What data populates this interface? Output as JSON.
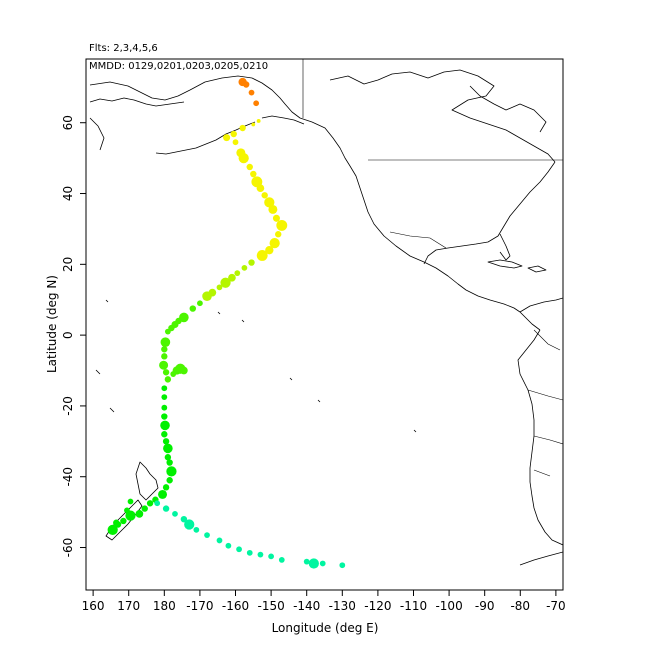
{
  "chart_data": {
    "type": "scatter",
    "title": "",
    "annotations": [
      "Flts: 2,3,4,5,6",
      "MMDD: 0129,0201,0203,0205,0210"
    ],
    "xlabel": "Longitude (deg E)",
    "ylabel": "Latitude (deg N)",
    "xlim": [
      158,
      292
    ],
    "ylim": [
      -72,
      78
    ],
    "xticks": [
      160,
      170,
      180,
      190,
      200,
      210,
      220,
      230,
      240,
      250,
      260,
      270,
      280,
      290
    ],
    "xtick_labels": [
      "160",
      "170",
      "180",
      "-170",
      "-160",
      "-150",
      "-140",
      "-130",
      "-120",
      "-110",
      "-100",
      "-90",
      "-80",
      "-70"
    ],
    "yticks": [
      -60,
      -40,
      -20,
      0,
      20,
      40,
      60
    ],
    "ytick_labels": [
      "-60",
      "-40",
      "-20",
      "0",
      "20",
      "40",
      "60"
    ],
    "grid": false,
    "background_map": "world coastlines and national borders",
    "colors": {
      "orange": "#ff8000",
      "yellow": "#f5f500",
      "yellow_green": "#b4f500",
      "green": "#4cf500",
      "bright_green": "#00f000",
      "aqua_green": "#00f5a0"
    },
    "series": [
      {
        "color_key": "orange",
        "points": [
          {
            "lon": 202.0,
            "lat": 71.5,
            "size": 1.3
          },
          {
            "lon": 203.0,
            "lat": 70.8,
            "size": 1.0
          },
          {
            "lon": 204.5,
            "lat": 68.5,
            "size": 0.9
          },
          {
            "lon": 205.8,
            "lat": 65.5,
            "size": 0.9
          }
        ]
      },
      {
        "color_key": "yellow",
        "points": [
          {
            "lon": 206.5,
            "lat": 60.5,
            "size": 0.6
          },
          {
            "lon": 205.0,
            "lat": 59.5,
            "size": 0.6
          },
          {
            "lon": 202.0,
            "lat": 58.5,
            "size": 1.0
          },
          {
            "lon": 199.5,
            "lat": 56.8,
            "size": 1.0
          },
          {
            "lon": 197.5,
            "lat": 55.8,
            "size": 1.1
          },
          {
            "lon": 200.0,
            "lat": 54.5,
            "size": 0.9
          },
          {
            "lon": 201.5,
            "lat": 51.5,
            "size": 1.4
          },
          {
            "lon": 202.3,
            "lat": 50.0,
            "size": 1.6
          },
          {
            "lon": 204.0,
            "lat": 47.5,
            "size": 1.0
          },
          {
            "lon": 205.0,
            "lat": 45.5,
            "size": 1.0
          },
          {
            "lon": 206.0,
            "lat": 43.3,
            "size": 1.7
          },
          {
            "lon": 207.0,
            "lat": 41.5,
            "size": 1.2
          },
          {
            "lon": 208.2,
            "lat": 39.5,
            "size": 1.0
          },
          {
            "lon": 209.5,
            "lat": 37.5,
            "size": 1.6
          },
          {
            "lon": 210.5,
            "lat": 35.5,
            "size": 1.4
          },
          {
            "lon": 211.5,
            "lat": 33.0,
            "size": 1.1
          },
          {
            "lon": 213.0,
            "lat": 31.0,
            "size": 1.7
          },
          {
            "lon": 212.0,
            "lat": 28.5,
            "size": 1.0
          },
          {
            "lon": 211.0,
            "lat": 26.0,
            "size": 1.6
          },
          {
            "lon": 209.5,
            "lat": 24.0,
            "size": 1.3
          },
          {
            "lon": 207.5,
            "lat": 22.5,
            "size": 1.7
          }
        ]
      },
      {
        "color_key": "yellow_green",
        "points": [
          {
            "lon": 204.5,
            "lat": 20.5,
            "size": 1.0
          },
          {
            "lon": 202.5,
            "lat": 19.0,
            "size": 0.9
          },
          {
            "lon": 200.5,
            "lat": 17.5,
            "size": 0.9
          },
          {
            "lon": 199.0,
            "lat": 16.2,
            "size": 1.2
          },
          {
            "lon": 197.2,
            "lat": 14.8,
            "size": 1.6
          },
          {
            "lon": 195.5,
            "lat": 13.5,
            "size": 0.9
          },
          {
            "lon": 193.5,
            "lat": 12.0,
            "size": 1.2
          },
          {
            "lon": 192.0,
            "lat": 11.0,
            "size": 1.5
          }
        ]
      },
      {
        "color_key": "green",
        "points": [
          {
            "lon": 190.0,
            "lat": 9.0,
            "size": 0.9
          },
          {
            "lon": 188.0,
            "lat": 7.5,
            "size": 1.0
          },
          {
            "lon": 185.5,
            "lat": 5.0,
            "size": 1.5
          },
          {
            "lon": 184.0,
            "lat": 4.0,
            "size": 1.0
          },
          {
            "lon": 183.0,
            "lat": 3.0,
            "size": 1.1
          },
          {
            "lon": 182.0,
            "lat": 2.0,
            "size": 1.0
          },
          {
            "lon": 181.0,
            "lat": 1.0,
            "size": 0.9
          },
          {
            "lon": 180.3,
            "lat": -2.0,
            "size": 1.5
          },
          {
            "lon": 180.0,
            "lat": -4.0,
            "size": 1.0
          },
          {
            "lon": 180.0,
            "lat": -6.0,
            "size": 1.0
          },
          {
            "lon": 179.8,
            "lat": -8.5,
            "size": 1.4
          },
          {
            "lon": 180.5,
            "lat": -10.5,
            "size": 1.0
          },
          {
            "lon": 181.0,
            "lat": -12.5,
            "size": 1.0
          },
          {
            "lon": 182.5,
            "lat": -11.0,
            "size": 0.9
          },
          {
            "lon": 183.5,
            "lat": -10.0,
            "size": 1.3
          },
          {
            "lon": 184.5,
            "lat": -9.5,
            "size": 1.6
          },
          {
            "lon": 185.5,
            "lat": -10.0,
            "size": 1.2
          }
        ]
      },
      {
        "color_key": "bright_green",
        "points": [
          {
            "lon": 180.0,
            "lat": -15.0,
            "size": 0.9
          },
          {
            "lon": 180.0,
            "lat": -17.5,
            "size": 0.9
          },
          {
            "lon": 180.0,
            "lat": -20.5,
            "size": 0.9
          },
          {
            "lon": 180.0,
            "lat": -23.0,
            "size": 1.0
          },
          {
            "lon": 180.2,
            "lat": -25.5,
            "size": 1.5
          },
          {
            "lon": 180.0,
            "lat": -28.0,
            "size": 1.0
          },
          {
            "lon": 180.5,
            "lat": -30.0,
            "size": 1.0
          },
          {
            "lon": 181.0,
            "lat": -32.0,
            "size": 1.5
          },
          {
            "lon": 181.0,
            "lat": -34.5,
            "size": 1.0
          },
          {
            "lon": 181.5,
            "lat": -36.0,
            "size": 1.0
          },
          {
            "lon": 182.0,
            "lat": -38.5,
            "size": 1.6
          },
          {
            "lon": 181.5,
            "lat": -41.0,
            "size": 1.0
          },
          {
            "lon": 180.5,
            "lat": -43.0,
            "size": 1.0
          },
          {
            "lon": 179.5,
            "lat": -45.0,
            "size": 1.4
          },
          {
            "lon": 177.5,
            "lat": -46.5,
            "size": 1.0
          },
          {
            "lon": 176.0,
            "lat": -47.5,
            "size": 1.0
          },
          {
            "lon": 174.5,
            "lat": -49.0,
            "size": 1.0
          },
          {
            "lon": 173.0,
            "lat": -50.5,
            "size": 1.2
          },
          {
            "lon": 170.5,
            "lat": -51.0,
            "size": 1.6
          },
          {
            "lon": 168.5,
            "lat": -52.5,
            "size": 1.0
          },
          {
            "lon": 167.0,
            "lat": -53.5,
            "size": 1.0
          },
          {
            "lon": 165.5,
            "lat": -55.0,
            "size": 1.6
          },
          {
            "lon": 166.5,
            "lat": -53.0,
            "size": 1.0
          },
          {
            "lon": 169.5,
            "lat": -49.5,
            "size": 0.9
          },
          {
            "lon": 170.5,
            "lat": -47.0,
            "size": 0.9
          }
        ]
      },
      {
        "color_key": "aqua_green",
        "points": [
          {
            "lon": 178.0,
            "lat": -47.5,
            "size": 0.9
          },
          {
            "lon": 180.5,
            "lat": -49.0,
            "size": 1.0
          },
          {
            "lon": 183.0,
            "lat": -50.5,
            "size": 0.9
          },
          {
            "lon": 185.5,
            "lat": -52.0,
            "size": 1.0
          },
          {
            "lon": 187.0,
            "lat": -53.5,
            "size": 1.6
          },
          {
            "lon": 189.0,
            "lat": -55.0,
            "size": 0.9
          },
          {
            "lon": 192.0,
            "lat": -56.5,
            "size": 0.9
          },
          {
            "lon": 195.5,
            "lat": -58.0,
            "size": 0.9
          },
          {
            "lon": 198.0,
            "lat": -59.5,
            "size": 0.9
          },
          {
            "lon": 201.0,
            "lat": -60.5,
            "size": 0.9
          },
          {
            "lon": 204.0,
            "lat": -61.5,
            "size": 0.9
          },
          {
            "lon": 207.0,
            "lat": -62.0,
            "size": 0.9
          },
          {
            "lon": 210.0,
            "lat": -62.5,
            "size": 0.9
          },
          {
            "lon": 213.0,
            "lat": -63.5,
            "size": 0.9
          },
          {
            "lon": 220.0,
            "lat": -64.0,
            "size": 0.9
          },
          {
            "lon": 222.0,
            "lat": -64.5,
            "size": 1.6
          },
          {
            "lon": 224.5,
            "lat": -64.5,
            "size": 0.9
          },
          {
            "lon": 230.0,
            "lat": -65.0,
            "size": 0.9
          }
        ]
      }
    ]
  }
}
